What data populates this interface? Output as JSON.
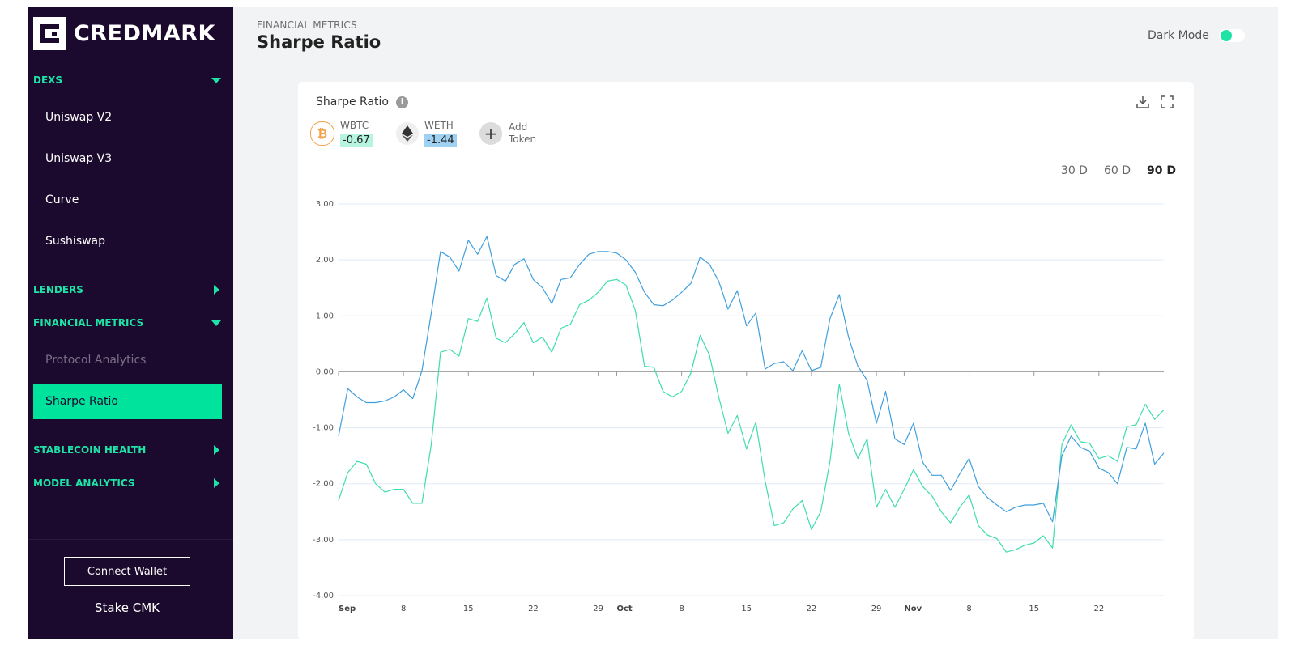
{
  "sidebar": {
    "logo_text": "CREDMARK",
    "sections": [
      {
        "label": "DEXS",
        "state": "expanded",
        "items": [
          "Uniswap V2",
          "Uniswap V3",
          "Curve",
          "Sushiswap"
        ]
      },
      {
        "label": "LENDERS",
        "state": "collapsed"
      },
      {
        "label": "FINANCIAL METRICS",
        "state": "expanded",
        "items": [
          "Protocol Analytics",
          "Sharpe Ratio"
        ]
      },
      {
        "label": "STABLECOIN HEALTH",
        "state": "collapsed"
      },
      {
        "label": "MODEL ANALYTICS",
        "state": "collapsed"
      }
    ],
    "active_item": "Sharpe Ratio",
    "connect_wallet": "Connect Wallet",
    "stake": "Stake CMK"
  },
  "header": {
    "breadcrumb": "FINANCIAL METRICS",
    "title": "Sharpe Ratio",
    "dark_mode_label": "Dark Mode",
    "dark_mode_on": false
  },
  "card": {
    "title": "Sharpe Ratio",
    "info_icon": "info-icon",
    "download_icon": "download-icon",
    "fullscreen_icon": "fullscreen-icon",
    "tokens": [
      {
        "symbol": "WBTC",
        "value": "-0.67",
        "icon": "bitcoin-icon",
        "color": "#00e39c",
        "badge_bg": "#b7f4df"
      },
      {
        "symbol": "WETH",
        "value": "-1.44",
        "icon": "ethereum-icon",
        "color": "#3ba3e0",
        "badge_bg": "#9fd2f2"
      }
    ],
    "add_token": "Add Token",
    "ranges": [
      "30 D",
      "60 D",
      "90 D"
    ],
    "selected_range": "90 D"
  },
  "colors": {
    "accent": "#1ee3a6",
    "sidebar_bg": "#1b0a2d",
    "wbtc_line": "#3eddb0",
    "weth_line": "#3f9fdd"
  },
  "chart_data": {
    "type": "line",
    "ylim": [
      -4,
      3
    ],
    "yticks": [
      "3.00",
      "2.00",
      "1.00",
      "0.00",
      "-1.00",
      "-2.00",
      "-3.00",
      "-4.00"
    ],
    "xticks": [
      {
        "label": "Sep",
        "bold": true,
        "day": 0
      },
      {
        "label": "8",
        "bold": false,
        "day": 7
      },
      {
        "label": "15",
        "bold": false,
        "day": 14
      },
      {
        "label": "22",
        "bold": false,
        "day": 21
      },
      {
        "label": "29",
        "bold": false,
        "day": 28
      },
      {
        "label": "Oct",
        "bold": true,
        "day": 30
      },
      {
        "label": "8",
        "bold": false,
        "day": 37
      },
      {
        "label": "15",
        "bold": false,
        "day": 44
      },
      {
        "label": "22",
        "bold": false,
        "day": 51
      },
      {
        "label": "29",
        "bold": false,
        "day": 58
      },
      {
        "label": "Nov",
        "bold": true,
        "day": 61
      },
      {
        "label": "8",
        "bold": false,
        "day": 68
      },
      {
        "label": "15",
        "bold": false,
        "day": 75
      },
      {
        "label": "22",
        "bold": false,
        "day": 82
      }
    ],
    "x_days": 89,
    "series": [
      {
        "name": "WBTC",
        "values": [
          -2.3,
          -1.8,
          -1.6,
          -1.65,
          -2.0,
          -2.15,
          -2.1,
          -2.1,
          -2.35,
          -2.35,
          -1.3,
          0.35,
          0.4,
          0.28,
          0.95,
          0.9,
          1.32,
          0.6,
          0.52,
          0.68,
          0.88,
          0.52,
          0.62,
          0.35,
          0.78,
          0.85,
          1.2,
          1.28,
          1.42,
          1.62,
          1.65,
          1.55,
          1.1,
          0.1,
          0.08,
          -0.35,
          -0.45,
          -0.35,
          -0.02,
          0.65,
          0.3,
          -0.45,
          -1.1,
          -0.78,
          -1.38,
          -0.9,
          -1.95,
          -2.75,
          -2.7,
          -2.45,
          -2.3,
          -2.82,
          -2.5,
          -1.6,
          -0.22,
          -1.1,
          -1.55,
          -1.2,
          -2.42,
          -2.1,
          -2.42,
          -2.1,
          -1.75,
          -2.05,
          -2.22,
          -2.5,
          -2.7,
          -2.42,
          -2.2,
          -2.75,
          -2.92,
          -2.98,
          -3.22,
          -3.18,
          -3.1,
          -3.06,
          -2.93,
          -3.15,
          -1.3,
          -0.95,
          -1.25,
          -1.28,
          -1.55,
          -1.5,
          -1.6,
          -0.98,
          -0.95,
          -0.58,
          -0.85,
          -0.68
        ]
      },
      {
        "name": "WETH",
        "values": [
          -1.15,
          -0.3,
          -0.45,
          -0.55,
          -0.55,
          -0.52,
          -0.45,
          -0.32,
          -0.48,
          0.02,
          1.05,
          2.15,
          2.05,
          1.8,
          2.35,
          2.1,
          2.42,
          1.72,
          1.62,
          1.92,
          2.02,
          1.65,
          1.5,
          1.22,
          1.65,
          1.68,
          1.92,
          2.1,
          2.15,
          2.15,
          2.12,
          2.0,
          1.78,
          1.42,
          1.2,
          1.18,
          1.28,
          1.42,
          1.58,
          2.05,
          1.92,
          1.62,
          1.12,
          1.45,
          0.82,
          1.05,
          0.05,
          0.15,
          0.18,
          0.02,
          0.38,
          0.02,
          0.08,
          0.95,
          1.38,
          0.62,
          0.1,
          -0.15,
          -0.92,
          -0.35,
          -1.2,
          -1.3,
          -0.92,
          -1.62,
          -1.85,
          -1.85,
          -2.12,
          -1.82,
          -1.55,
          -2.05,
          -2.25,
          -2.38,
          -2.5,
          -2.42,
          -2.38,
          -2.38,
          -2.35,
          -2.68,
          -1.5,
          -1.15,
          -1.35,
          -1.42,
          -1.72,
          -1.8,
          -2.0,
          -1.35,
          -1.38,
          -0.92,
          -1.65,
          -1.45
        ]
      }
    ]
  }
}
